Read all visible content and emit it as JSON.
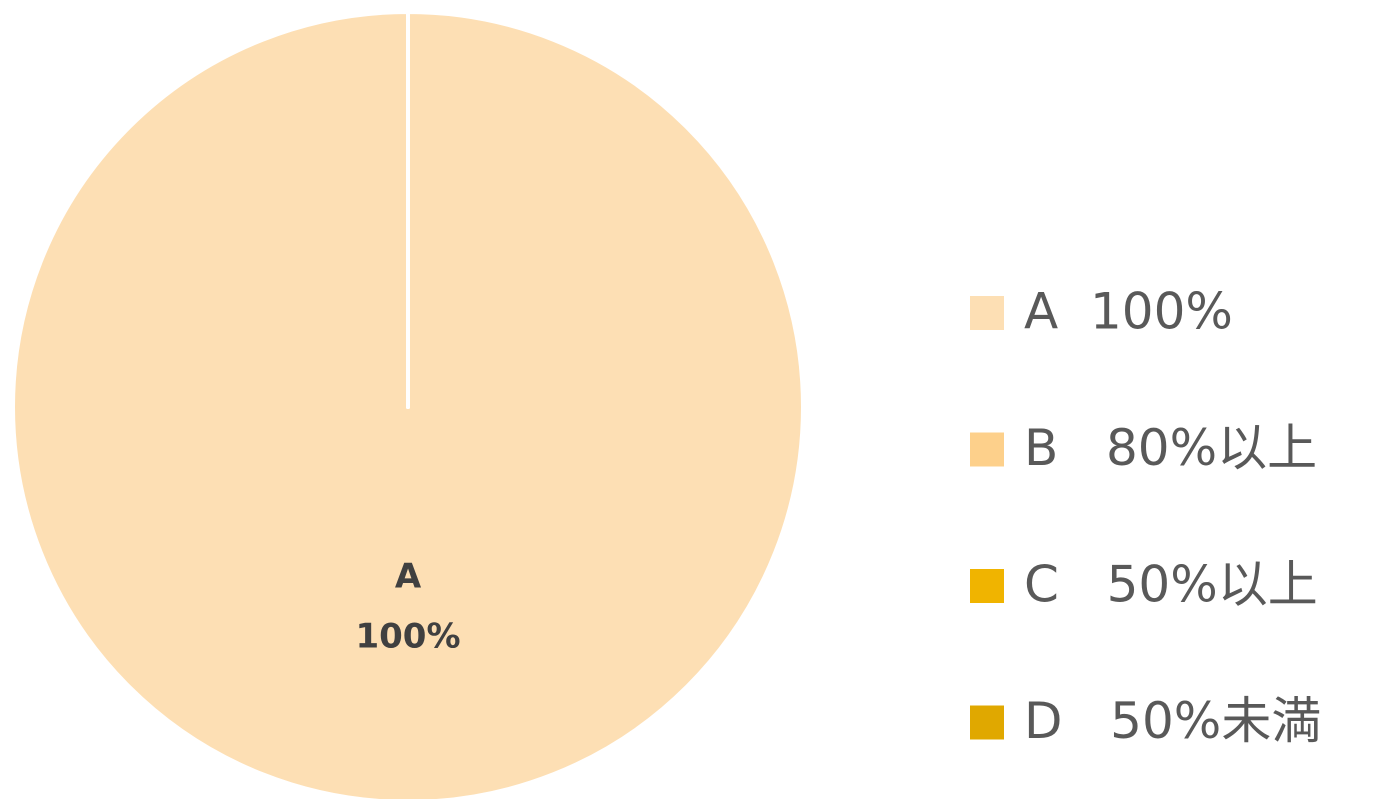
{
  "chart_data": {
    "type": "pie",
    "categories": [
      "A  100%",
      "B   80%以上",
      "C   50%以上",
      "D   50%未満"
    ],
    "values": [
      100,
      0,
      0,
      0
    ],
    "colors": [
      "#FDDFB4",
      "#FDD08B",
      "#F0B400",
      "#E0A800"
    ],
    "label_names": [
      "A",
      null,
      null,
      null
    ],
    "value_labels": [
      "100%",
      null,
      null,
      null
    ],
    "legend": "right"
  }
}
